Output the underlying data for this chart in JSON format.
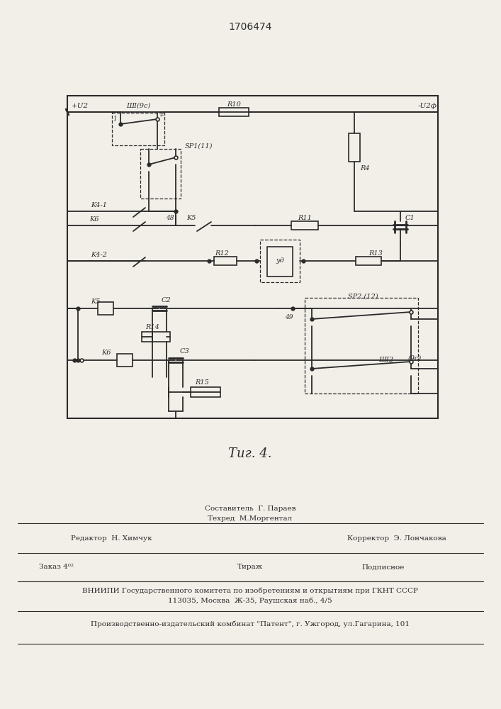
{
  "patent_number": "1706474",
  "fig_label": "Τиг. 4.",
  "bg_color": "#f2efe9",
  "line_color": "#2a2a2a",
  "footer": {
    "sestavitel": "Составитель  Г. Параев",
    "tehred": "Техред  М.Моргентал",
    "redaktor": "Редактор  Н. Химчук",
    "korrektor": "Корректор  Э. Лончакова",
    "zakaz": "Заказ 4⁰²",
    "tirazh": "Тираж",
    "podpisnoe": "Подписное",
    "vniippi": "ВНИИПИ Государственного комитета по изобретениям и открытиям при ГКНТ СССР",
    "address": "113035, Москва  Ж-35, Раушская наб., 4/5",
    "proizv": "Производственно-издательский комбинат \"Патент\", г. Ужгород, ул.Гагарина, 101"
  }
}
